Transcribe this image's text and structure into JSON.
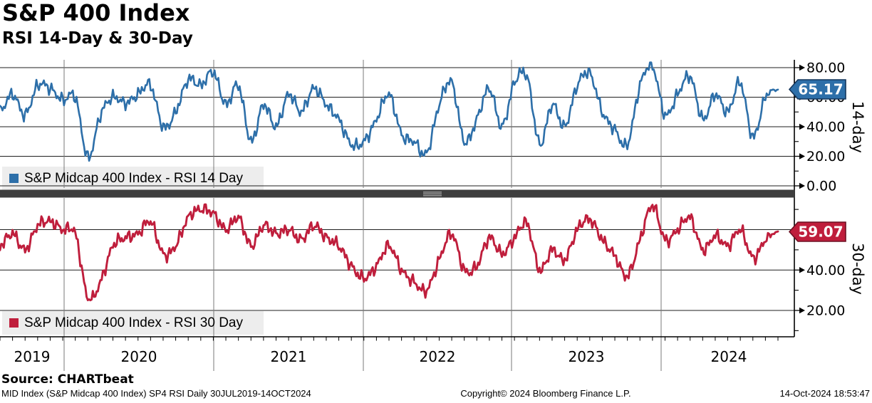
{
  "header": {
    "title": "S&P 400 Index",
    "subtitle": "RSI 14-Day & 30-Day"
  },
  "panels": [
    {
      "id": "rsi14",
      "legend": "S&P Midcap 400 Index - RSI 14 Day",
      "axis_label": "14-day",
      "last_value": "65.17",
      "color": "#2d6fa9",
      "tag_border": "#14365c",
      "y_tick_labels": [
        "80.00",
        "60.00",
        "40.00",
        "20.00",
        "0.00"
      ]
    },
    {
      "id": "rsi30",
      "legend": "S&P Midcap 400 Index - RSI 30 Day",
      "axis_label": "30-day",
      "last_value": "59.07",
      "color": "#bf1e3c",
      "tag_border": "#6d1023",
      "y_tick_labels": [
        "60.00",
        "40.00",
        "20.00"
      ]
    }
  ],
  "x_axis": {
    "years": [
      "2019",
      "2020",
      "2021",
      "2022",
      "2023",
      "2024"
    ]
  },
  "footer": {
    "source": "Source: CHARTbeat",
    "left": "MID Index (S&P Midcap 400 Index) SP4 RSI  Daily 30JUL2019-14OCT2024",
    "center": "Copyright© 2024 Bloomberg Finance L.P.",
    "right": "14-Oct-2024 18:53:47"
  },
  "chart_data": [
    {
      "type": "line",
      "title": "S&P Midcap 400 Index - RSI 14 Day",
      "x_start": "2019-08",
      "x_end": "2024-10",
      "x_interval": "monthly (approx anchors of daily series)",
      "x_range_label": "30JUL2019-14OCT2024",
      "ylabel": "14-day",
      "ylim": [
        0,
        85
      ],
      "yticks": [
        80,
        60,
        40,
        20,
        0
      ],
      "legend_position": "bottom-left",
      "grid": true,
      "values": [
        50,
        62,
        48,
        68,
        66,
        58,
        60,
        19,
        48,
        60,
        56,
        62,
        68,
        40,
        50,
        72,
        68,
        77,
        55,
        68,
        30,
        55,
        40,
        62,
        50,
        66,
        55,
        45,
        28,
        30,
        45,
        62,
        35,
        30,
        22,
        55,
        70,
        30,
        45,
        66,
        40,
        70,
        74,
        28,
        55,
        40,
        68,
        76,
        50,
        38,
        28,
        68,
        81,
        48,
        62,
        74,
        45,
        62,
        50,
        70,
        33,
        60,
        65.17
      ],
      "last_value": 65.17
    },
    {
      "type": "line",
      "title": "S&P Midcap 400 Index - RSI 30 Day",
      "x_start": "2019-08",
      "x_end": "2024-10",
      "x_interval": "monthly (approx anchors of daily series)",
      "x_range_label": "30JUL2019-14OCT2024",
      "ylabel": "30-day",
      "ylim": [
        7,
        76
      ],
      "yticks": [
        60,
        40,
        20
      ],
      "legend_position": "bottom-left",
      "grid": true,
      "values": [
        52,
        58,
        50,
        62,
        64,
        60,
        58,
        26,
        34,
        52,
        56,
        58,
        64,
        48,
        52,
        66,
        70,
        68,
        60,
        66,
        52,
        62,
        58,
        60,
        55,
        62,
        56,
        52,
        42,
        36,
        42,
        52,
        40,
        34,
        30,
        45,
        58,
        40,
        42,
        56,
        48,
        56,
        63,
        40,
        50,
        45,
        60,
        65,
        55,
        47,
        37,
        55,
        72,
        55,
        60,
        66,
        50,
        57,
        52,
        60,
        46,
        55,
        59.07
      ],
      "last_value": 59.07
    }
  ]
}
